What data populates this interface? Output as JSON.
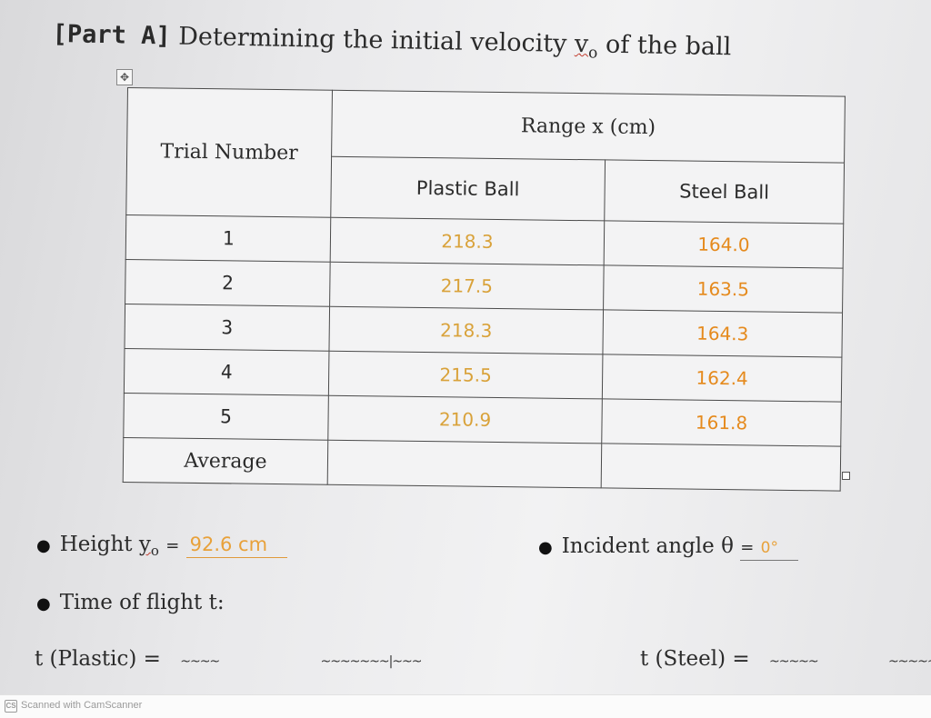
{
  "title": {
    "part": "[Part A]",
    "text": "Determining the initial velocity",
    "symbol": "v",
    "subscript": "o",
    "suffix": "of the ball"
  },
  "table": {
    "trial_header": "Trial Number",
    "range_header": "Range x (cm)",
    "col_plastic": "Plastic Ball",
    "col_steel": "Steel Ball",
    "rows": [
      {
        "trial": "1",
        "plastic": "218.3",
        "steel": "164.0"
      },
      {
        "trial": "2",
        "plastic": "217.5",
        "steel": "163.5"
      },
      {
        "trial": "3",
        "plastic": "218.3",
        "steel": "164.3"
      },
      {
        "trial": "4",
        "plastic": "215.5",
        "steel": "162.4"
      },
      {
        "trial": "5",
        "plastic": "210.9",
        "steel": "161.8"
      }
    ],
    "average_label": "Average",
    "average_plastic": "",
    "average_steel": ""
  },
  "height": {
    "label": "Height",
    "symbol": "y",
    "subscript": "o",
    "eq": "=",
    "value": "92.6 cm"
  },
  "angle": {
    "label": "Incident angle θ",
    "eq": "=",
    "value": "0°"
  },
  "time_of_flight": {
    "label": "Time of flight t:"
  },
  "t_plastic": {
    "label": "t (Plastic) =",
    "value": ""
  },
  "t_steel": {
    "label": "t (Steel) =",
    "value": ""
  },
  "footer": {
    "logo": "CS",
    "text": "Scanned with CamScanner"
  },
  "colors": {
    "fill_value": "#e8a13a",
    "steel_value": "#e58a1d",
    "plastic_value": "#d9a23a"
  }
}
